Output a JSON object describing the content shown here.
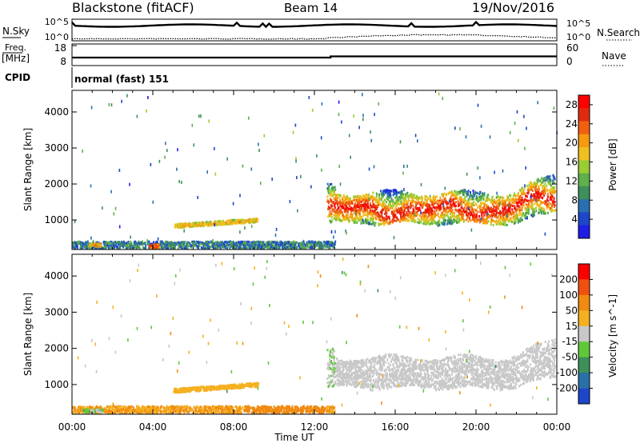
{
  "header": {
    "station": "Blackstone (fitACF)",
    "beam": "Beam 14",
    "date": "19/Nov/2016"
  },
  "noise_panel": {
    "left_label": "N.Sky",
    "right_label": "N.Search",
    "tick_top": "10^5",
    "tick_bottom": "10^0",
    "right_tick_top": "10^5",
    "right_tick_bottom": "10^0"
  },
  "freq_panel": {
    "left_label_line1": "Freq.",
    "left_label_line2": "[MHz]",
    "right_label": "Nave",
    "freq_ticks": [
      "18",
      "8"
    ],
    "nave_ticks": [
      "60",
      "0"
    ],
    "freq_line_style": "solid",
    "nave_line_style": "dotted"
  },
  "cpid": {
    "label": "CPID",
    "value": "normal (fast) 151"
  },
  "x_axis": {
    "title": "Time UT",
    "ticks": [
      "00:00",
      "04:00",
      "08:00",
      "12:00",
      "16:00",
      "20:00",
      "00:00"
    ],
    "range_hours": [
      0,
      24
    ]
  },
  "chart_data": [
    {
      "type": "heatmap",
      "panel": "power",
      "ylabel": "Slant Range [km]",
      "y_ticks": [
        "1000",
        "2000",
        "3000",
        "4000"
      ],
      "ylim": [
        180,
        4600
      ],
      "xlim_hours": [
        0,
        24
      ],
      "colorbar": {
        "label": "Power [dB]",
        "ticks": [
          "4",
          "8",
          "12",
          "16",
          "20",
          "24",
          "28"
        ],
        "range": [
          0,
          30
        ],
        "colors": [
          "#1e1ee6",
          "#1e46c8",
          "#2a6fb0",
          "#3f8f5a",
          "#5fb04a",
          "#9acd32",
          "#f0c020",
          "#f59a10",
          "#f06010",
          "#e02a10",
          "#ff0000"
        ]
      },
      "features": [
        {
          "name": "near-range clutter",
          "time_hours": [
            0,
            13
          ],
          "range_km": [
            180,
            400
          ],
          "power_db": 8
        },
        {
          "name": "hot spot 01:00",
          "time_hours": [
            0.8,
            1.4
          ],
          "range_km": [
            260,
            340
          ],
          "power_db": 20
        },
        {
          "name": "hot spot 04:00",
          "time_hours": [
            3.8,
            4.3
          ],
          "range_km": [
            220,
            320
          ],
          "power_db": 24
        },
        {
          "name": "morning band",
          "time_hours": [
            5.0,
            9.2
          ],
          "range_km": [
            760,
            1000
          ],
          "power_db": 17
        },
        {
          "name": "evening band",
          "time_hours": [
            12.6,
            23.9
          ],
          "range_km": [
            900,
            1900
          ],
          "power_db": 22
        }
      ]
    },
    {
      "type": "heatmap",
      "panel": "velocity",
      "ylabel": "Slant Range [km]",
      "y_ticks": [
        "1000",
        "2000",
        "3000",
        "4000"
      ],
      "ylim": [
        180,
        4600
      ],
      "xlim_hours": [
        0,
        24
      ],
      "colorbar": {
        "label": "Velocity [m s^-1]",
        "ticks": [
          "200",
          "100",
          "50",
          "15",
          "-15",
          "-50",
          "-100",
          "-200"
        ],
        "range": [
          -250,
          250
        ],
        "colors": [
          "#1e46c8",
          "#2a70a8",
          "#3f8f5a",
          "#5fc83a",
          "#c8c8c8",
          "#f5b020",
          "#f08a10",
          "#f05010",
          "#ff0000"
        ]
      },
      "features": [
        {
          "name": "near-range flow",
          "time_hours": [
            0,
            13
          ],
          "range_km": [
            180,
            400
          ],
          "velocity_ms": -50
        },
        {
          "name": "green patch 01:00",
          "time_hours": [
            0.5,
            1.5
          ],
          "range_km": [
            220,
            320
          ],
          "velocity_ms": 30
        },
        {
          "name": "morning band",
          "time_hours": [
            5.0,
            9.2
          ],
          "range_km": [
            760,
            1000
          ],
          "velocity_ms": -30
        },
        {
          "name": "ground scatter",
          "time_hours": [
            12.6,
            23.9
          ],
          "range_km": [
            900,
            1900
          ],
          "velocity_ms": 0
        }
      ]
    }
  ]
}
